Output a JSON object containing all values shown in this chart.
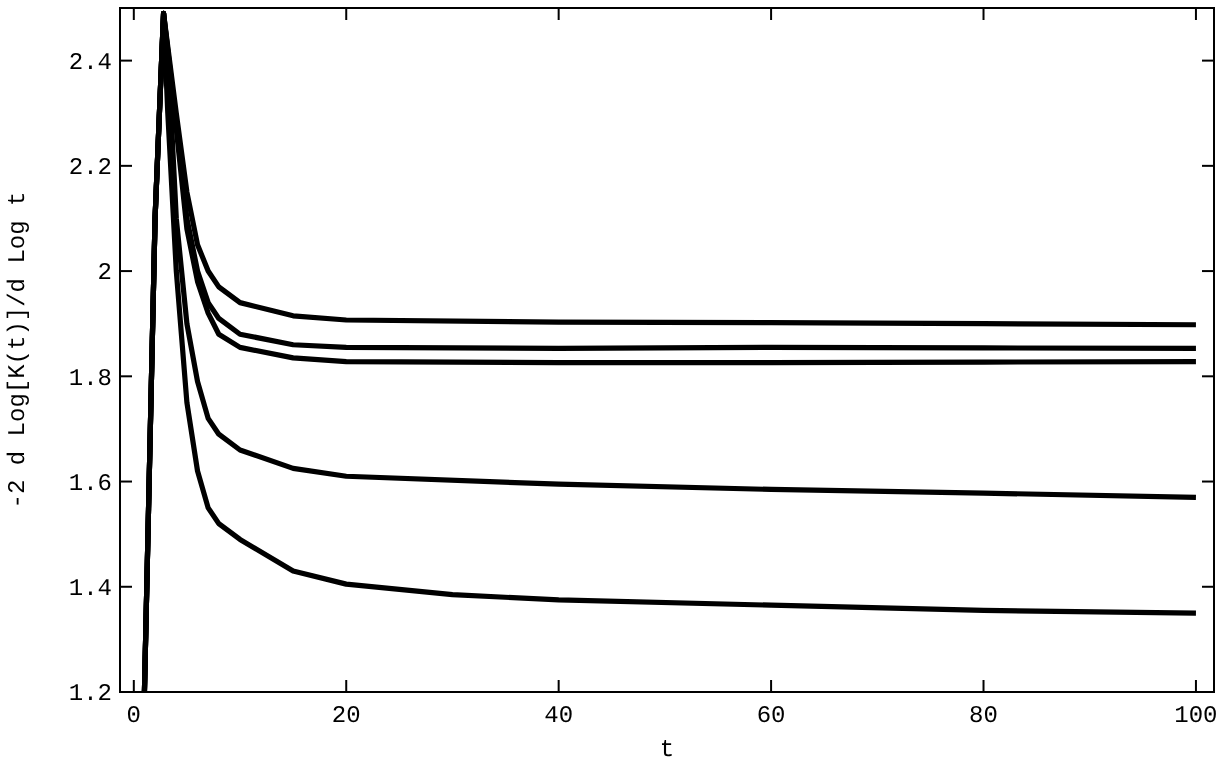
{
  "chart_data": {
    "type": "line",
    "xlabel": "t",
    "ylabel": "-2 d Log[K(t)]/d Log t",
    "xlim": [
      -1.3,
      101.7
    ],
    "ylim": [
      1.2,
      2.5
    ],
    "xticks": [
      0,
      20,
      40,
      60,
      80,
      100
    ],
    "yticks": [
      1.2,
      1.4,
      1.6,
      1.8,
      2,
      2.2,
      2.4
    ],
    "grid": false,
    "marker": "none",
    "line_style": "solid",
    "series": [
      {
        "color": "#000000",
        "x": [
          1,
          2,
          2.8,
          4,
          5,
          6,
          7,
          8,
          10,
          15,
          20,
          40,
          60,
          80,
          100
        ],
        "values": [
          1.2,
          2.1,
          2.49,
          2.3,
          2.15,
          2.05,
          2.0,
          1.97,
          1.94,
          1.915,
          1.907,
          1.903,
          1.902,
          1.9,
          1.898
        ]
      },
      {
        "color": "#000000",
        "x": [
          1,
          2,
          2.8,
          4,
          5,
          6,
          7,
          8,
          10,
          15,
          20,
          40,
          60,
          80,
          100
        ],
        "values": [
          1.2,
          2.1,
          2.49,
          2.28,
          2.1,
          2.0,
          1.94,
          1.91,
          1.88,
          1.86,
          1.855,
          1.853,
          1.855,
          1.854,
          1.853
        ]
      },
      {
        "color": "#000000",
        "x": [
          1,
          2,
          2.8,
          4,
          5,
          6,
          7,
          8,
          10,
          15,
          20,
          40,
          60,
          80,
          100
        ],
        "values": [
          1.2,
          2.1,
          2.49,
          2.27,
          2.08,
          1.98,
          1.92,
          1.88,
          1.855,
          1.835,
          1.828,
          1.826,
          1.826,
          1.827,
          1.828
        ]
      },
      {
        "color": "#000000",
        "x": [
          1,
          2,
          2.8,
          3.5,
          4,
          5,
          6,
          7,
          8,
          10,
          15,
          20,
          40,
          60,
          80,
          100
        ],
        "values": [
          1.2,
          2.1,
          2.49,
          2.3,
          2.1,
          1.9,
          1.79,
          1.72,
          1.69,
          1.66,
          1.625,
          1.61,
          1.595,
          1.585,
          1.578,
          1.57
        ]
      },
      {
        "color": "#000000",
        "x": [
          1,
          2,
          2.8,
          3.2,
          4,
          5,
          6,
          7,
          8,
          10,
          15,
          20,
          30,
          40,
          60,
          80,
          100
        ],
        "values": [
          1.2,
          2.1,
          2.49,
          2.3,
          2.0,
          1.75,
          1.62,
          1.55,
          1.52,
          1.49,
          1.43,
          1.405,
          1.385,
          1.375,
          1.365,
          1.355,
          1.35
        ]
      }
    ]
  }
}
